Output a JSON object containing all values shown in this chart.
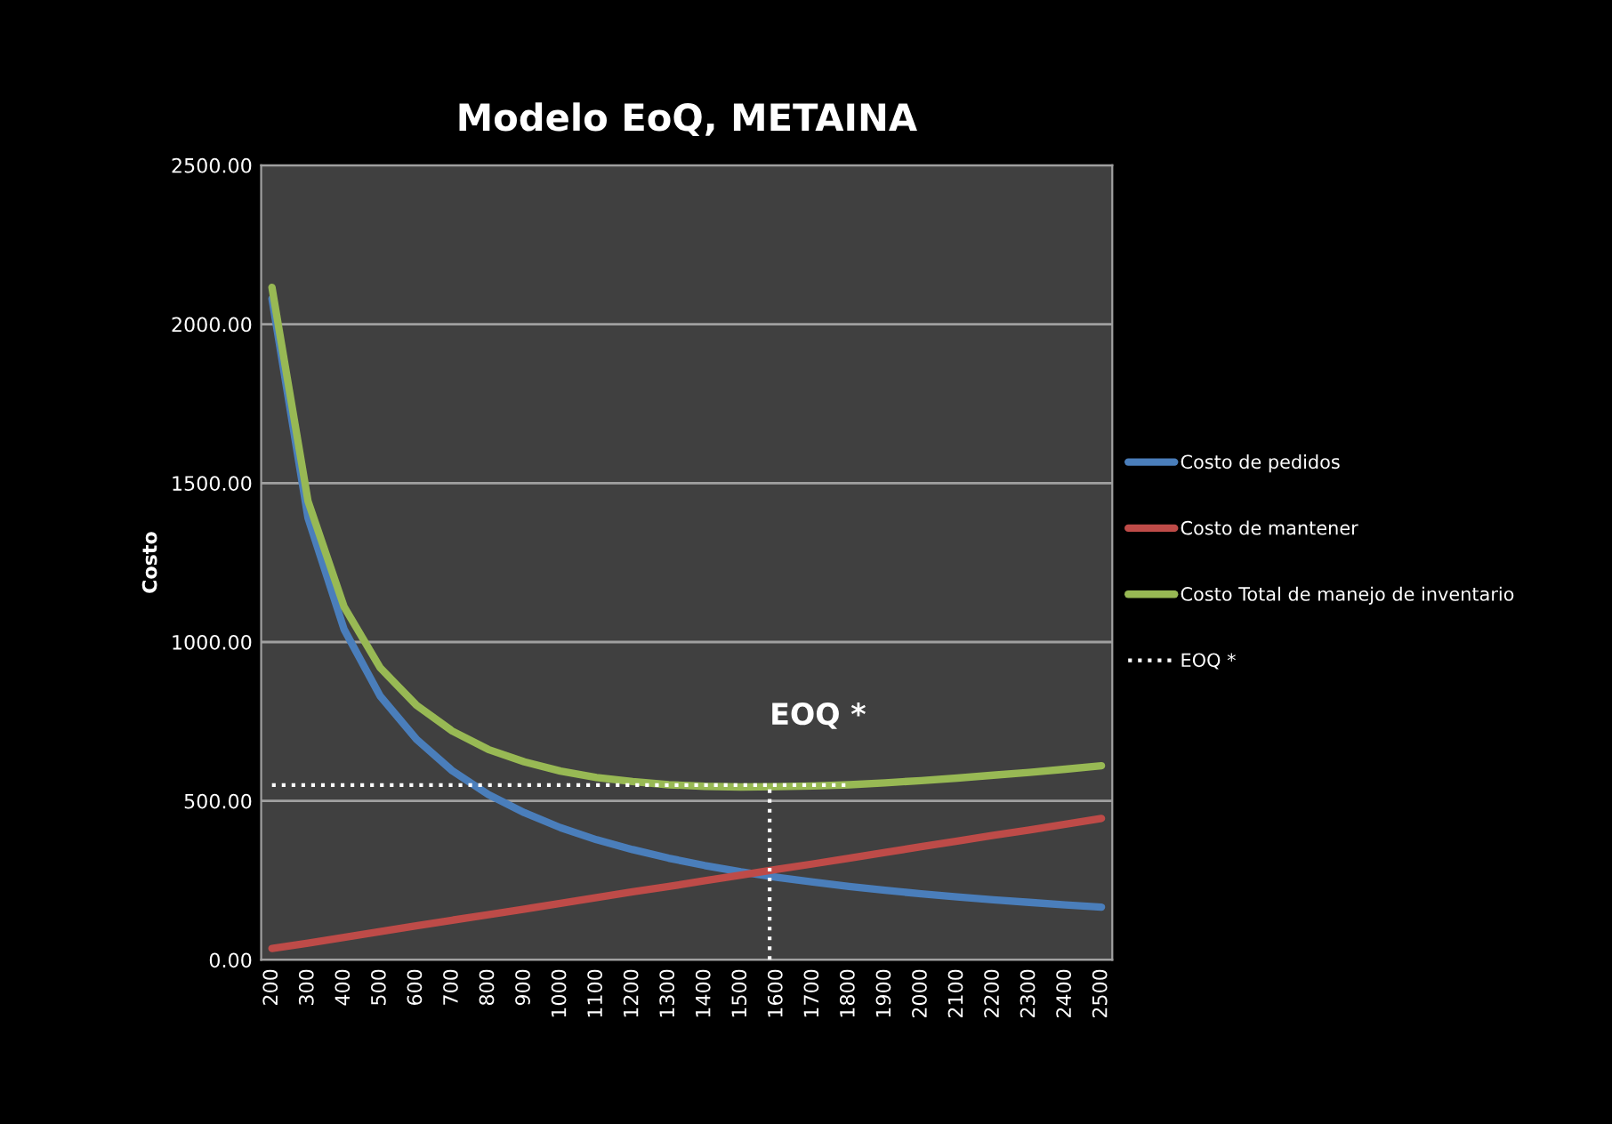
{
  "chart_data": {
    "type": "line",
    "title": "Modelo EoQ, METAINA",
    "ylabel": "Costo",
    "x": [
      200,
      300,
      400,
      500,
      600,
      700,
      800,
      900,
      1000,
      1100,
      1200,
      1300,
      1400,
      1500,
      1600,
      1700,
      1800,
      1900,
      2000,
      2100,
      2200,
      2300,
      2400,
      2500
    ],
    "series": [
      {
        "name": "Costo de pedidos",
        "color": "#4a7ebb",
        "values": [
          2080,
          1390,
          1040,
          830,
          695,
          595,
          520,
          463,
          416,
          378,
          347,
          320,
          297,
          277,
          260,
          245,
          231,
          219,
          208,
          198,
          189,
          181,
          173,
          166
        ]
      },
      {
        "name": "Costo de mantener",
        "color": "#be4b48",
        "values": [
          36,
          53,
          71,
          89,
          107,
          125,
          142,
          160,
          178,
          196,
          214,
          231,
          249,
          267,
          285,
          302,
          320,
          338,
          356,
          374,
          392,
          409,
          427,
          445
        ]
      },
      {
        "name": "Costo Total de manejo de inventario",
        "color": "#98b954",
        "values": [
          2116,
          1443,
          1111,
          919,
          802,
          720,
          662,
          623,
          594,
          574,
          561,
          551,
          546,
          544,
          545,
          547,
          551,
          557,
          564,
          572,
          581,
          590,
          600,
          611
        ]
      },
      {
        "name": "EOQ *",
        "color": "#ffffff",
        "line_style": "dotted",
        "x": [
          200,
          1800
        ],
        "values": [
          550,
          550
        ]
      },
      {
        "color": "#ffffff",
        "line_style": "dotted",
        "x": [
          1580,
          1580
        ],
        "values": [
          0,
          550
        ]
      }
    ],
    "annotations": [
      {
        "text": "EOQ *",
        "x": 1580,
        "y": 550
      }
    ],
    "xlim": [
      170,
      2530
    ],
    "xticks": [
      200,
      300,
      400,
      500,
      600,
      700,
      800,
      900,
      1000,
      1100,
      1200,
      1300,
      1400,
      1500,
      1600,
      1700,
      1800,
      1900,
      2000,
      2100,
      2200,
      2300,
      2400,
      2500
    ],
    "ylim": [
      0,
      2500
    ],
    "yticks": [
      {
        "value": 0,
        "label": "0.00"
      },
      {
        "value": 500,
        "label": "500.00"
      },
      {
        "value": 1000,
        "label": "1000.00"
      },
      {
        "value": 1500,
        "label": "1500.00"
      },
      {
        "value": 2000,
        "label": "2000.00"
      },
      {
        "value": 2500,
        "label": "2500.00"
      }
    ],
    "grid": "y",
    "legend": "right"
  }
}
